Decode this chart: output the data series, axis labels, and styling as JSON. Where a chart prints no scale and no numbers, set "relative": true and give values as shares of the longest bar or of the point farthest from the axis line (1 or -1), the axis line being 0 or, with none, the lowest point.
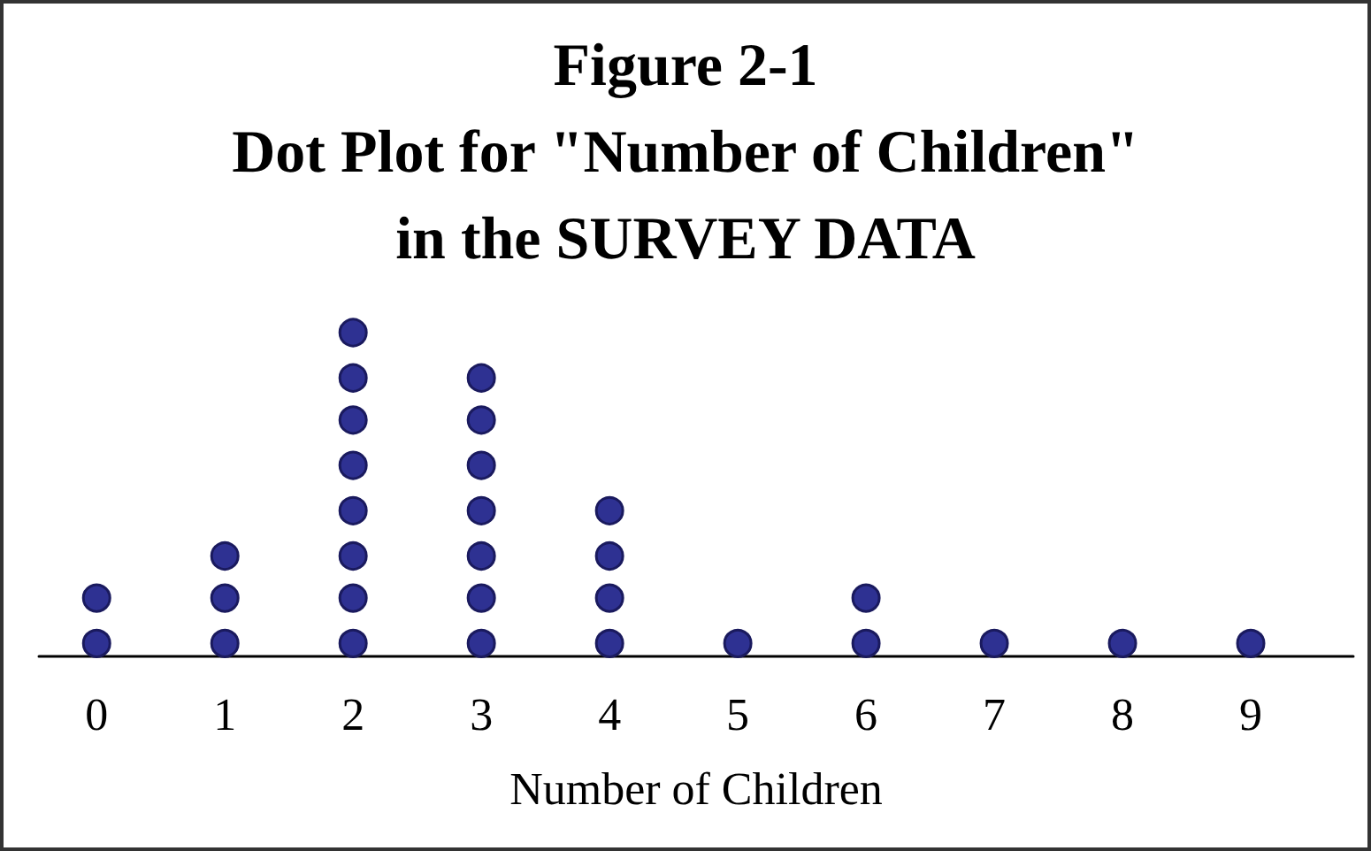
{
  "chart_data": {
    "type": "scatter",
    "title": "Figure 2-1\nDot Plot for \"Number of Children\"\nin the SURVEY DATA",
    "xlabel": "Number of Children",
    "relative": true,
    "x": [
      0,
      0,
      1,
      1,
      1,
      2,
      2,
      2,
      2,
      2,
      2,
      2,
      2,
      3,
      3,
      3,
      3,
      3,
      3,
      3,
      4,
      4,
      4,
      4,
      5,
      6,
      6,
      7,
      8,
      9
    ],
    "series": [
      {
        "color": "#2e3192",
        "values": [
          0.04,
          0.18,
          0.04,
          0.18,
          0.31,
          0.04,
          0.18,
          0.31,
          0.45,
          0.59,
          0.73,
          0.86,
          1,
          0.04,
          0.18,
          0.31,
          0.45,
          0.59,
          0.73,
          0.86,
          0.04,
          0.18,
          0.31,
          0.45,
          0.04,
          0.04,
          0.18,
          0.04,
          0.04,
          0.04
        ]
      }
    ],
    "xlim": [
      -0.45,
      9.8
    ],
    "xticks": [
      0,
      1,
      2,
      3,
      4,
      5,
      6,
      7,
      8,
      9
    ],
    "tick_labels": "x",
    "grid": false,
    "marker": "circle"
  }
}
